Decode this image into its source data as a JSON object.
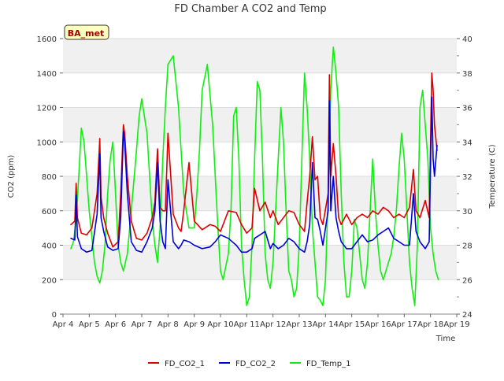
{
  "chart_data": {
    "type": "line",
    "title": "FD Chamber A CO2 and Temp",
    "badge": "BA_met",
    "xlabel": "Time",
    "ylabel_left": "CO2 (ppm)",
    "ylabel_right": "Temperature (C)",
    "xlim": [
      4,
      19
    ],
    "ylim_left": [
      0,
      1600
    ],
    "ylim_right": [
      24,
      40
    ],
    "x_ticks": [
      {
        "value": 4,
        "label": "Apr 4"
      },
      {
        "value": 5,
        "label": "Apr 5"
      },
      {
        "value": 6,
        "label": "Apr 6"
      },
      {
        "value": 7,
        "label": "Apr 7"
      },
      {
        "value": 8,
        "label": "Apr 8"
      },
      {
        "value": 9,
        "label": "Apr 9"
      },
      {
        "value": 10,
        "label": "Apr 10"
      },
      {
        "value": 11,
        "label": "Apr 11"
      },
      {
        "value": 12,
        "label": "Apr 12"
      },
      {
        "value": 13,
        "label": "Apr 13"
      },
      {
        "value": 14,
        "label": "Apr 14"
      },
      {
        "value": 15,
        "label": "Apr 15"
      },
      {
        "value": 16,
        "label": "Apr 16"
      },
      {
        "value": 17,
        "label": "Apr 17"
      },
      {
        "value": 18,
        "label": "Apr 18"
      },
      {
        "value": 19,
        "label": "Apr 19"
      }
    ],
    "y_ticks_left": [
      0,
      200,
      400,
      600,
      800,
      1000,
      1200,
      1400,
      1600
    ],
    "y_ticks_right": [
      24,
      26,
      28,
      30,
      32,
      34,
      36,
      38,
      40
    ],
    "grid": "horizontal bands",
    "legend_position": "bottom",
    "series": [
      {
        "name": "FD_CO2_1",
        "axis": "left",
        "color": "#dd0000",
        "x": [
          4.3,
          4.45,
          4.5,
          4.55,
          4.7,
          4.9,
          5.1,
          5.3,
          5.4,
          5.45,
          5.55,
          5.7,
          5.9,
          6.1,
          6.2,
          6.3,
          6.35,
          6.45,
          6.6,
          6.8,
          7.0,
          7.2,
          7.4,
          7.5,
          7.6,
          7.7,
          7.8,
          7.9,
          8.0,
          8.2,
          8.4,
          8.5,
          8.6,
          8.8,
          9.0,
          9.3,
          9.6,
          9.8,
          10.0,
          10.3,
          10.6,
          10.8,
          11.0,
          11.2,
          11.3,
          11.5,
          11.7,
          11.9,
          12.0,
          12.2,
          12.4,
          12.6,
          12.8,
          13.0,
          13.2,
          13.3,
          13.4,
          13.5,
          13.6,
          13.7,
          13.8,
          13.9,
          14.1,
          14.15,
          14.2,
          14.3,
          14.4,
          14.5,
          14.6,
          14.8,
          15.0,
          15.2,
          15.4,
          15.6,
          15.8,
          16.0,
          16.2,
          16.4,
          16.6,
          16.8,
          17.0,
          17.2,
          17.35,
          17.45,
          17.6,
          17.8,
          17.95,
          18.05,
          18.1,
          18.15,
          18.25
        ],
        "y": [
          520,
          540,
          760,
          560,
          470,
          460,
          500,
          700,
          1020,
          680,
          560,
          470,
          390,
          420,
          700,
          1100,
          1050,
          800,
          540,
          440,
          430,
          470,
          560,
          650,
          960,
          620,
          600,
          600,
          1050,
          580,
          500,
          480,
          600,
          880,
          540,
          490,
          520,
          510,
          480,
          600,
          590,
          520,
          470,
          500,
          730,
          600,
          650,
          560,
          600,
          520,
          560,
          600,
          590,
          520,
          480,
          650,
          800,
          1030,
          780,
          800,
          560,
          520,
          700,
          1390,
          800,
          990,
          800,
          560,
          520,
          580,
          520,
          560,
          580,
          560,
          600,
          580,
          620,
          600,
          560,
          580,
          560,
          620,
          840,
          600,
          560,
          660,
          560,
          1400,
          1300,
          1100,
          950
        ]
      },
      {
        "name": "FD_CO2_2",
        "axis": "left",
        "color": "#0000dd",
        "x": [
          4.3,
          4.45,
          4.5,
          4.55,
          4.7,
          4.9,
          5.1,
          5.3,
          5.4,
          5.45,
          5.55,
          5.7,
          5.9,
          6.1,
          6.2,
          6.3,
          6.35,
          6.45,
          6.6,
          6.8,
          7.0,
          7.2,
          7.4,
          7.5,
          7.6,
          7.7,
          7.8,
          7.9,
          8.0,
          8.2,
          8.4,
          8.5,
          8.6,
          8.8,
          9.0,
          9.3,
          9.6,
          9.8,
          10.0,
          10.3,
          10.6,
          10.8,
          11.0,
          11.2,
          11.3,
          11.5,
          11.7,
          11.9,
          12.0,
          12.2,
          12.4,
          12.6,
          12.8,
          13.0,
          13.2,
          13.3,
          13.4,
          13.5,
          13.6,
          13.7,
          13.8,
          13.9,
          14.1,
          14.15,
          14.2,
          14.3,
          14.4,
          14.5,
          14.6,
          14.8,
          15.0,
          15.2,
          15.4,
          15.6,
          15.8,
          16.0,
          16.2,
          16.4,
          16.6,
          16.8,
          17.0,
          17.2,
          17.35,
          17.45,
          17.6,
          17.8,
          17.95,
          18.05,
          18.1,
          18.15,
          18.25
        ],
        "y": [
          440,
          430,
          690,
          450,
          380,
          360,
          370,
          580,
          930,
          560,
          480,
          390,
          370,
          380,
          560,
          1060,
          1000,
          700,
          420,
          370,
          360,
          420,
          500,
          600,
          880,
          540,
          420,
          380,
          780,
          420,
          380,
          400,
          430,
          420,
          400,
          380,
          390,
          420,
          460,
          440,
          400,
          360,
          360,
          380,
          440,
          460,
          480,
          380,
          410,
          380,
          400,
          440,
          420,
          380,
          360,
          420,
          520,
          880,
          560,
          550,
          480,
          400,
          600,
          1240,
          600,
          800,
          560,
          480,
          420,
          380,
          380,
          420,
          460,
          420,
          430,
          460,
          480,
          500,
          440,
          420,
          400,
          400,
          700,
          480,
          420,
          380,
          420,
          1260,
          900,
          800,
          980
        ]
      },
      {
        "name": "FD_Temp_1",
        "axis": "right",
        "color": "#11ee11",
        "x": [
          4.3,
          4.4,
          4.5,
          4.6,
          4.7,
          4.8,
          5.0,
          5.2,
          5.3,
          5.4,
          5.5,
          5.6,
          5.7,
          5.8,
          5.9,
          6.0,
          6.1,
          6.2,
          6.3,
          6.45,
          6.6,
          6.8,
          6.9,
          7.0,
          7.1,
          7.2,
          7.3,
          7.4,
          7.5,
          7.6,
          7.7,
          7.8,
          7.9,
          8.0,
          8.2,
          8.4,
          8.6,
          8.8,
          9.0,
          9.1,
          9.2,
          9.3,
          9.5,
          9.7,
          9.9,
          10.0,
          10.1,
          10.3,
          10.4,
          10.5,
          10.6,
          10.7,
          10.8,
          10.9,
          11.0,
          11.1,
          11.2,
          11.3,
          11.4,
          11.5,
          11.6,
          11.7,
          11.8,
          11.9,
          12.0,
          12.1,
          12.2,
          12.3,
          12.4,
          12.5,
          12.6,
          12.7,
          12.8,
          12.9,
          13.0,
          13.1,
          13.2,
          13.3,
          13.4,
          13.5,
          13.6,
          13.7,
          13.8,
          13.9,
          14.0,
          14.1,
          14.2,
          14.3,
          14.4,
          14.5,
          14.6,
          14.7,
          14.8,
          14.9,
          15.0,
          15.1,
          15.2,
          15.3,
          15.4,
          15.5,
          15.6,
          15.7,
          15.8,
          15.9,
          16.0,
          16.1,
          16.2,
          16.3,
          16.4,
          16.5,
          16.6,
          16.7,
          16.8,
          16.9,
          17.0,
          17.1,
          17.2,
          17.3,
          17.4,
          17.5,
          17.6,
          17.7,
          17.8,
          17.9,
          18.0,
          18.1,
          18.2,
          18.3
        ],
        "y": [
          27.8,
          28.2,
          29.5,
          32.0,
          34.8,
          34.0,
          30.0,
          27.0,
          26.2,
          25.8,
          26.5,
          28.0,
          31.0,
          33.0,
          34.0,
          31.0,
          28.0,
          27.0,
          26.5,
          27.5,
          30.0,
          33.5,
          35.5,
          36.5,
          35.5,
          34.5,
          32.0,
          29.5,
          28.0,
          27.0,
          29.0,
          33.0,
          36.0,
          38.5,
          39.0,
          36.0,
          31.0,
          29.0,
          29.0,
          31.0,
          33.5,
          37.0,
          38.5,
          35.0,
          29.0,
          26.5,
          26.0,
          27.5,
          30.0,
          35.5,
          36.0,
          33.0,
          28.0,
          26.0,
          24.5,
          25.0,
          28.0,
          33.0,
          37.5,
          37.0,
          33.0,
          27.5,
          26.0,
          25.5,
          27.0,
          30.0,
          33.0,
          36.0,
          34.0,
          30.0,
          26.5,
          26.0,
          25.0,
          25.5,
          28.0,
          33.0,
          38.0,
          36.0,
          33.0,
          29.0,
          27.0,
          25.0,
          24.8,
          24.5,
          26.0,
          31.0,
          37.0,
          39.5,
          38.0,
          36.0,
          31.0,
          27.0,
          25.0,
          25.0,
          26.5,
          29.5,
          29.0,
          27.5,
          26.0,
          25.5,
          27.0,
          30.0,
          33.0,
          30.0,
          28.0,
          26.5,
          26.0,
          26.5,
          27.0,
          27.5,
          28.5,
          30.0,
          32.5,
          34.5,
          33.0,
          30.0,
          27.0,
          25.5,
          24.5,
          28.0,
          36.0,
          37.0,
          35.0,
          33.0,
          29.0,
          27.5,
          26.5,
          26.0
        ]
      }
    ]
  }
}
